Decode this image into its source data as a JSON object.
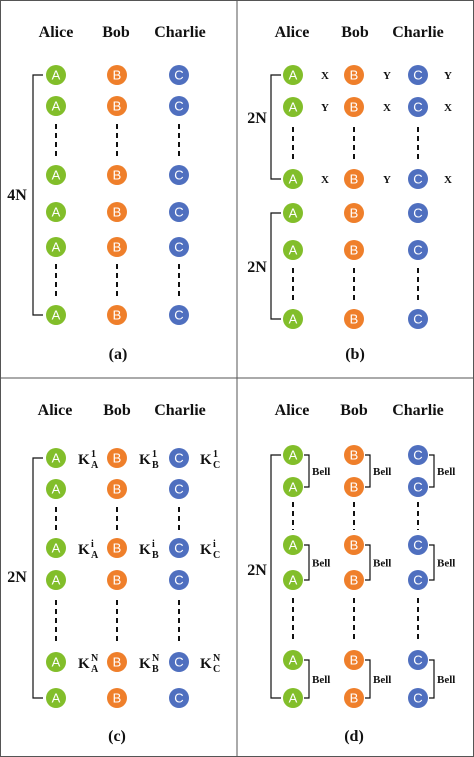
{
  "parties": [
    "Alice",
    "Bob",
    "Charlie"
  ],
  "node_letters": {
    "a": "A",
    "b": "B",
    "c": "C"
  },
  "colors": {
    "a": "#82be2a",
    "b": "#ef7f2b",
    "c": "#4f6fbf",
    "border": "#555555",
    "ink": "#111111"
  },
  "panels": {
    "a": {
      "caption": "(a)",
      "brace_label": "4N"
    },
    "b": {
      "caption": "(b)",
      "brace_top_label": "2N",
      "brace_bottom_label": "2N",
      "x": "X",
      "y": "Y"
    },
    "c": {
      "caption": "(c)",
      "brace_label": "2N",
      "K": "K",
      "sub_a": "A",
      "sub_b": "B",
      "sub_c": "C",
      "sup_1": "1",
      "sup_i": "i",
      "sup_n": "N"
    },
    "d": {
      "caption": "(d)",
      "brace_label": "2N",
      "bell": "Bell"
    }
  }
}
